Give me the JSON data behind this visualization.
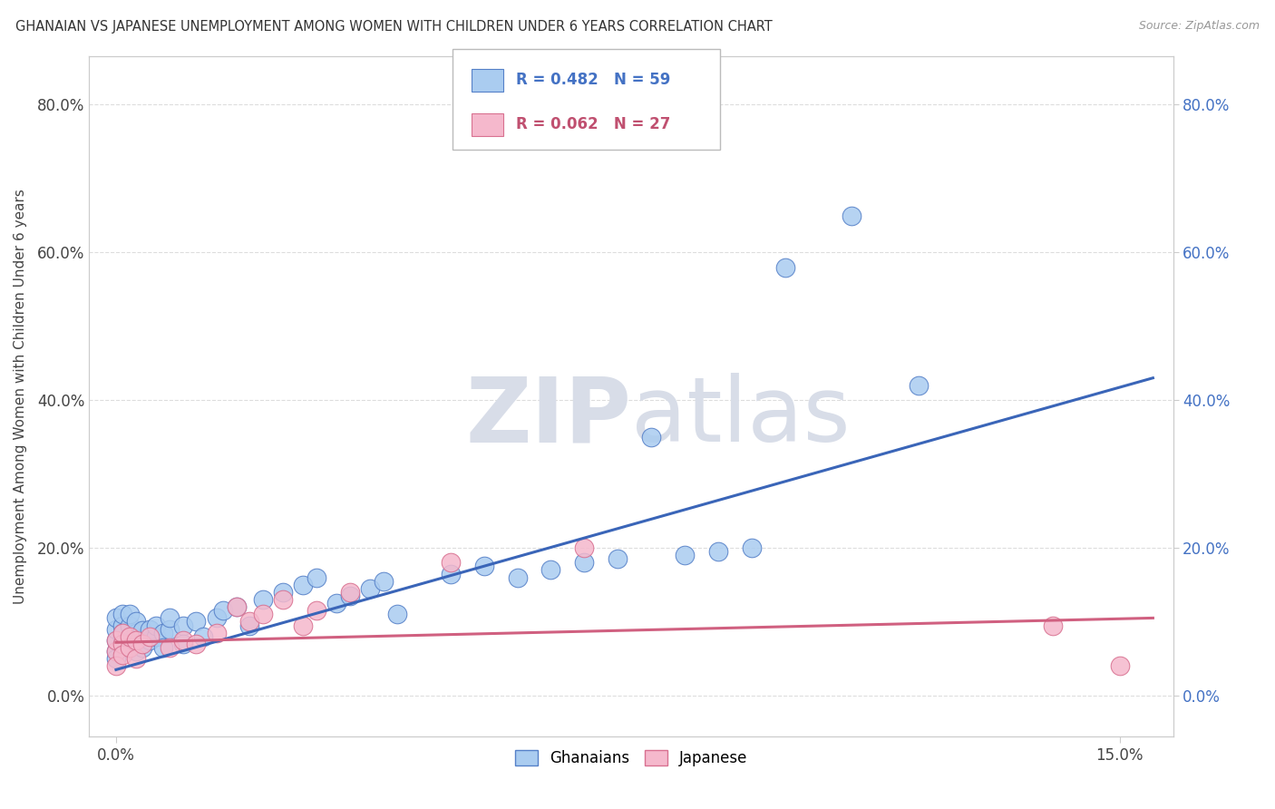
{
  "title": "GHANAIAN VS JAPANESE UNEMPLOYMENT AMONG WOMEN WITH CHILDREN UNDER 6 YEARS CORRELATION CHART",
  "source": "Source: ZipAtlas.com",
  "ylabel": "Unemployment Among Women with Children Under 6 years",
  "ytick_labels": [
    "0.0%",
    "20.0%",
    "40.0%",
    "60.0%",
    "80.0%"
  ],
  "ytick_values": [
    0.0,
    0.2,
    0.4,
    0.6,
    0.8
  ],
  "xtick_labels": [
    "0.0%",
    "15.0%"
  ],
  "xtick_values": [
    0.0,
    0.15
  ],
  "xlim": [
    -0.004,
    0.158
  ],
  "ylim": [
    -0.055,
    0.865
  ],
  "legend_ghanaian": "Ghanaians",
  "legend_japanese": "Japanese",
  "R_ghanaian": 0.482,
  "N_ghanaian": 59,
  "R_japanese": 0.062,
  "N_japanese": 27,
  "color_ghanaian_fill": "#aaccf0",
  "color_ghanaian_edge": "#5580c8",
  "color_ghanaian_line": "#3a65b8",
  "color_ghanaian_text": "#4472c4",
  "color_japanese_fill": "#f5b8cc",
  "color_japanese_edge": "#d87090",
  "color_japanese_line": "#d06080",
  "color_japanese_text": "#c05070",
  "watermark_zip": "ZIP",
  "watermark_atlas": "atlas",
  "watermark_color": "#d8dde8",
  "background_color": "#ffffff",
  "grid_color": "#dddddd",
  "ghanaian_x": [
    0.0,
    0.0,
    0.0,
    0.0,
    0.0,
    0.001,
    0.001,
    0.001,
    0.001,
    0.001,
    0.002,
    0.002,
    0.002,
    0.002,
    0.003,
    0.003,
    0.003,
    0.003,
    0.004,
    0.004,
    0.004,
    0.005,
    0.005,
    0.006,
    0.006,
    0.007,
    0.007,
    0.008,
    0.008,
    0.01,
    0.01,
    0.012,
    0.013,
    0.015,
    0.016,
    0.018,
    0.02,
    0.022,
    0.025,
    0.028,
    0.03,
    0.033,
    0.035,
    0.038,
    0.04,
    0.042,
    0.05,
    0.055,
    0.06,
    0.065,
    0.07,
    0.075,
    0.08,
    0.085,
    0.09,
    0.095,
    0.1,
    0.11,
    0.12
  ],
  "ghanaian_y": [
    0.06,
    0.075,
    0.09,
    0.105,
    0.05,
    0.08,
    0.095,
    0.11,
    0.07,
    0.085,
    0.065,
    0.08,
    0.095,
    0.11,
    0.07,
    0.085,
    0.1,
    0.06,
    0.072,
    0.088,
    0.065,
    0.075,
    0.09,
    0.08,
    0.095,
    0.085,
    0.065,
    0.09,
    0.105,
    0.095,
    0.07,
    0.1,
    0.08,
    0.105,
    0.115,
    0.12,
    0.095,
    0.13,
    0.14,
    0.15,
    0.16,
    0.125,
    0.135,
    0.145,
    0.155,
    0.11,
    0.165,
    0.175,
    0.16,
    0.17,
    0.18,
    0.185,
    0.35,
    0.19,
    0.195,
    0.2,
    0.58,
    0.65,
    0.42
  ],
  "japanese_x": [
    0.0,
    0.0,
    0.0,
    0.001,
    0.001,
    0.001,
    0.002,
    0.002,
    0.003,
    0.003,
    0.004,
    0.005,
    0.008,
    0.01,
    0.012,
    0.015,
    0.018,
    0.02,
    0.022,
    0.025,
    0.028,
    0.03,
    0.035,
    0.05,
    0.07,
    0.14,
    0.15
  ],
  "japanese_y": [
    0.06,
    0.075,
    0.04,
    0.07,
    0.085,
    0.055,
    0.065,
    0.08,
    0.075,
    0.05,
    0.07,
    0.08,
    0.065,
    0.075,
    0.07,
    0.085,
    0.12,
    0.1,
    0.11,
    0.13,
    0.095,
    0.115,
    0.14,
    0.18,
    0.2,
    0.095,
    0.04
  ],
  "line_gh_x0": 0.0,
  "line_gh_y0": 0.035,
  "line_gh_x1": 0.155,
  "line_gh_y1": 0.43,
  "line_jp_x0": 0.0,
  "line_jp_y0": 0.072,
  "line_jp_x1": 0.155,
  "line_jp_y1": 0.105
}
